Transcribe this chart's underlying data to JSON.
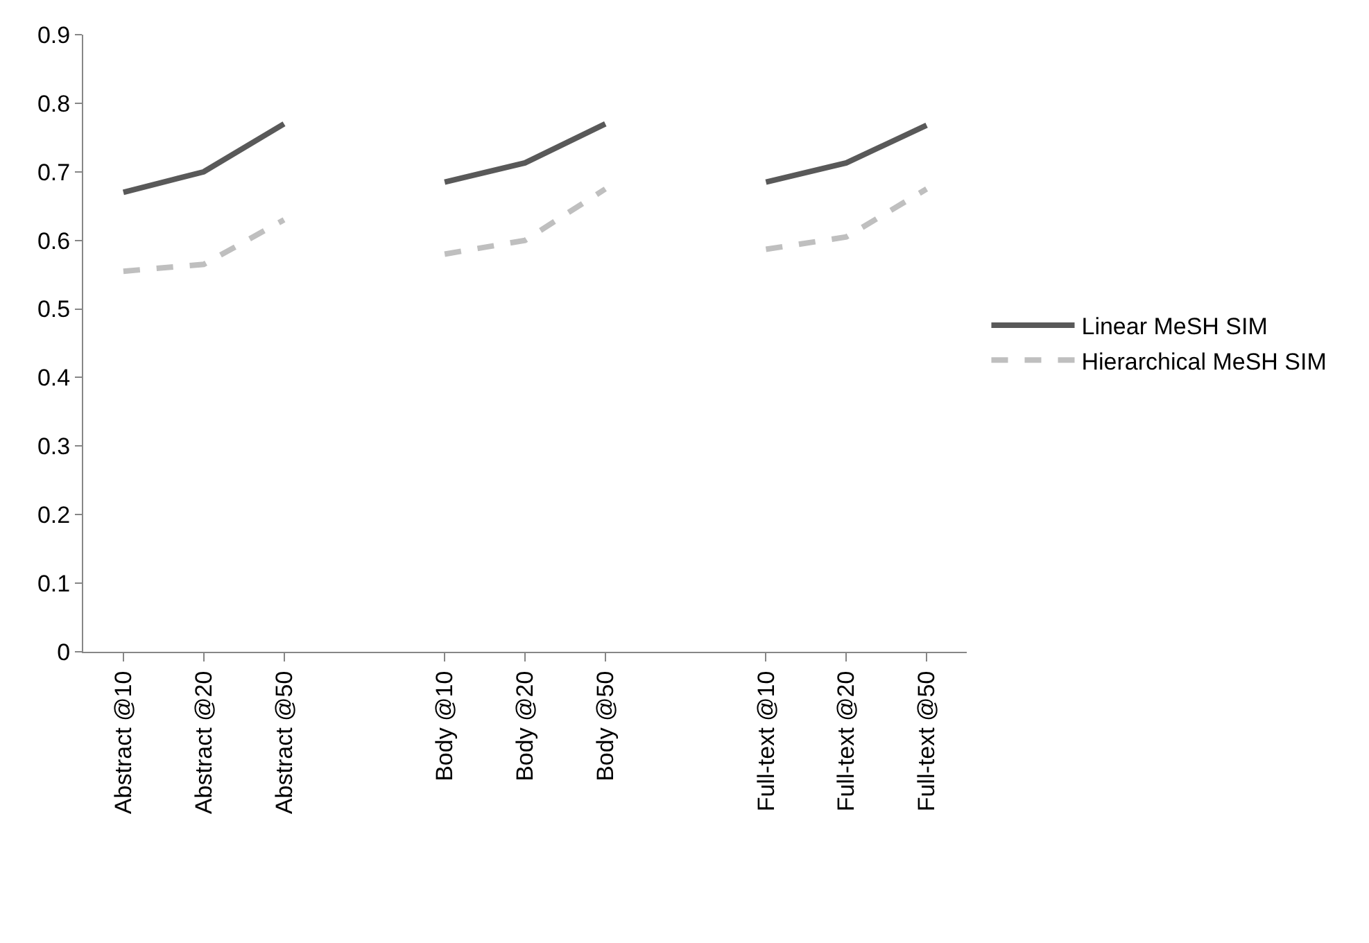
{
  "chart_data": {
    "type": "line",
    "categories": [
      "Abstract @10",
      "Abstract @20",
      "Abstract @50",
      null,
      "Body @10",
      "Body @20",
      "Body @50",
      null,
      "Full-text @10",
      "Full-text @20",
      "Full-text @50"
    ],
    "series": [
      {
        "name": "Linear MeSH SIM",
        "color": "#595959",
        "line_style": "solid",
        "values": [
          0.67,
          0.7,
          0.77,
          null,
          0.685,
          0.713,
          0.77,
          null,
          0.685,
          0.713,
          0.768
        ]
      },
      {
        "name": "Hierarchical MeSH SIM",
        "color": "#bfbfbf",
        "line_style": "dashed",
        "values": [
          0.555,
          0.565,
          0.63,
          null,
          0.58,
          0.6,
          0.675,
          null,
          0.587,
          0.605,
          0.675
        ]
      }
    ],
    "ylim": [
      0,
      0.9
    ],
    "yticks": [
      0,
      0.1,
      0.2,
      0.3,
      0.4,
      0.5,
      0.6,
      0.7,
      0.8,
      0.9
    ],
    "grid": false,
    "legend": "right",
    "marker": "none"
  }
}
